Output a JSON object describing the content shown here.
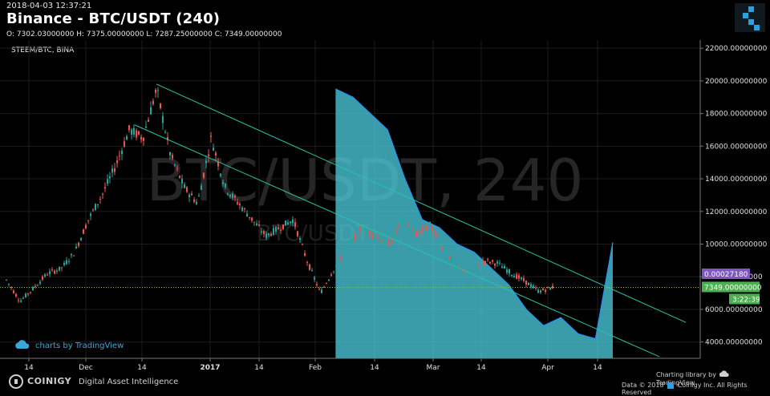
{
  "header": {
    "timestamp": "2018-04-03 12:37:21",
    "title": "Binance - BTC/USDT (240)",
    "ohlc": "O: 7302.03000000 H: 7375.00000000 L: 7287.25000000 C: 7349.00000000",
    "overlay_symbol": "STEEM/BTC, BINA",
    "watermark_main": "BTC/USDT, 240",
    "watermark_sub": "BTC/USDT"
  },
  "badges": {
    "tradingview": "charts by TradingView"
  },
  "footer": {
    "brand": "COINIGY",
    "tagline": "Digital Asset Intelligence",
    "charting": "Charting library by",
    "tv": "TradingView",
    "data": "Data © 2018",
    "copyright": "Coinigy Inc. All Rights Reserved"
  },
  "colors": {
    "up": "#26a69a",
    "down": "#ef5350",
    "overlay_line": "#2196f3",
    "overlay_fill": "#4dd0e1",
    "trendline": "#26c6a6",
    "last_price_bg": "#4caf50",
    "overlay_label_bg": "#7e57c2"
  },
  "chart_data": {
    "type": "line",
    "y_ticks": [
      "22000.00000000",
      "20000.00000000",
      "18000.00000000",
      "16000.00000000",
      "14000.00000000",
      "12000.00000000",
      "10000.00000000",
      "8000.00000000",
      "6000.00000000",
      "4000.00000000"
    ],
    "y_ticks_values": [
      22000,
      20000,
      18000,
      16000,
      14000,
      12000,
      10000,
      8000,
      6000,
      4000
    ],
    "ylim": [
      3000,
      22500
    ],
    "x_ticks": [
      "14",
      "Dec",
      "14",
      "2017",
      "14",
      "Feb",
      "14",
      "Mar",
      "14",
      "Apr",
      "14"
    ],
    "price_labels": {
      "overlay": "0.00027180",
      "last_price": "7349.00000000",
      "countdown": "3:22:39"
    },
    "last_price": 7349,
    "series": [
      {
        "name": "BTC/USDT",
        "x": [
          0,
          0.02,
          0.04,
          0.06,
          0.08,
          0.1,
          0.12,
          0.14,
          0.16,
          0.18,
          0.2,
          0.22,
          0.24,
          0.26,
          0.28,
          0.3,
          0.32,
          0.34,
          0.36,
          0.38,
          0.4,
          0.42,
          0.44,
          0.46,
          0.48,
          0.5,
          0.52,
          0.54,
          0.56,
          0.58,
          0.6,
          0.62,
          0.64,
          0.66,
          0.68,
          0.7,
          0.72,
          0.74,
          0.76,
          0.78,
          0.8
        ],
        "values": [
          7800,
          6500,
          7300,
          8200,
          8500,
          9500,
          11500,
          13000,
          14800,
          17000,
          16500,
          19500,
          15500,
          13500,
          12500,
          16500,
          13500,
          12500,
          11500,
          10500,
          11000,
          11500,
          9000,
          7000,
          8500,
          9800,
          11000,
          10500,
          10000,
          11500,
          10500,
          11200,
          9700,
          8600,
          8200,
          9000,
          8800,
          8200,
          7700,
          7100,
          7349
        ]
      },
      {
        "name": "STEEM/BTC",
        "x": [
          0.48,
          0.5,
          0.52,
          0.54,
          0.56,
          0.58,
          0.6,
          0.62,
          0.64,
          0.66,
          0.68,
          0.7,
          0.72,
          0.74,
          0.76,
          0.78,
          0.8
        ],
        "values": [
          19500,
          19000,
          18000,
          17000,
          14000,
          11500,
          11000,
          10000,
          9500,
          8500,
          7500,
          6000,
          5000,
          5500,
          4500,
          4200,
          10100
        ]
      }
    ]
  }
}
